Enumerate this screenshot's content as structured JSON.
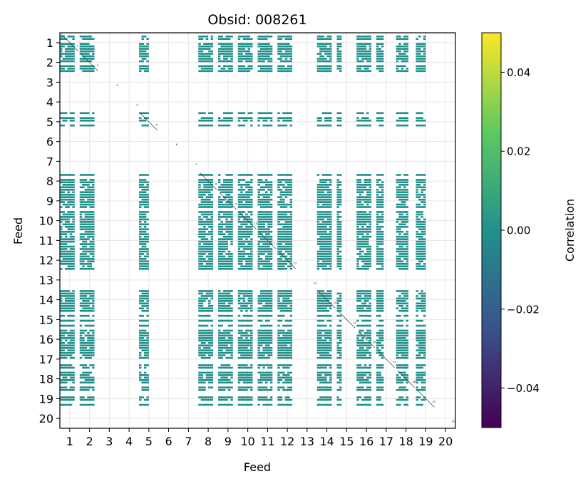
{
  "chart_data": {
    "type": "heatmap",
    "title": "Obsid: 008261",
    "xlabel": "Feed",
    "ylabel": "Feed",
    "x_ticks": [
      "1",
      "2",
      "3",
      "4",
      "5",
      "6",
      "7",
      "8",
      "9",
      "10",
      "11",
      "12",
      "13",
      "14",
      "15",
      "16",
      "17",
      "18",
      "19",
      "20"
    ],
    "y_ticks": [
      "1",
      "2",
      "3",
      "4",
      "5",
      "6",
      "7",
      "8",
      "9",
      "10",
      "11",
      "12",
      "13",
      "14",
      "15",
      "16",
      "17",
      "18",
      "19",
      "20"
    ],
    "grid": true,
    "colormap": "viridis",
    "colorbar": {
      "label": "Correlation",
      "range": [
        -0.05,
        0.05
      ],
      "ticks": [
        0.04,
        0.02,
        0.0,
        -0.02,
        -0.04
      ],
      "tick_labels": [
        "0.04",
        "0.02",
        "0.00",
        "−0.02",
        "−0.04"
      ],
      "colors": [
        "#440154",
        "#3b528b",
        "#21918c",
        "#5ec962",
        "#fde725"
      ]
    },
    "cell_color": "#21918c",
    "active_feeds": [
      1,
      2,
      5,
      8,
      9,
      10,
      11,
      12,
      14,
      15,
      16,
      17,
      18,
      19
    ],
    "empty_feeds": [
      3,
      4,
      6,
      7,
      13,
      20
    ],
    "block_fill": {
      "1": 0.7,
      "2": 0.75,
      "5": 0.45,
      "8": 0.75,
      "9": 0.8,
      "10": 0.8,
      "11": 0.75,
      "12": 0.7,
      "14": 0.75,
      "15": 0.3,
      "16": 0.7,
      "17": 0.35,
      "18": 0.65,
      "19": 0.5
    },
    "cell_value": 0.0,
    "diagonal_labels": [
      "1",
      "2",
      "3",
      "4",
      "5",
      "6",
      "7",
      "8",
      "9",
      "10",
      "11",
      "12",
      "13",
      "14",
      "15",
      "16",
      "17",
      "18",
      "19",
      "20"
    ]
  }
}
